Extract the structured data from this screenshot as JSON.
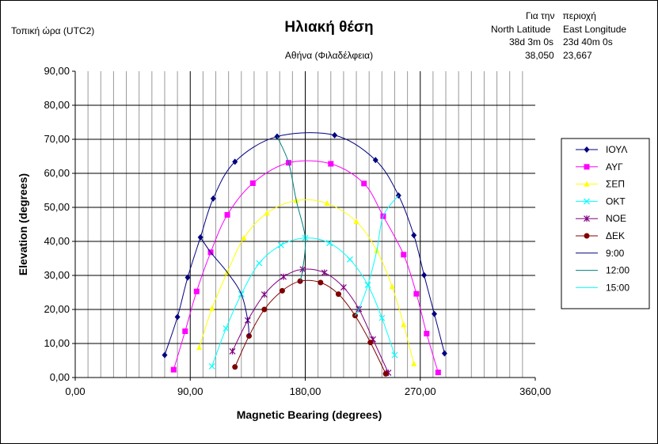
{
  "header": {
    "local_time": "Τοπική ώρα (UTC2)",
    "title": "Ηλιακή θέση",
    "subtitle": "Αθήνα (Φιλαδέλφεια)"
  },
  "location": {
    "region_label": "Για την   περιοχή",
    "lat_label": "North Latitude",
    "lon_label": "East Longitude",
    "lat_dms": "38d 3m 0s",
    "lon_dms": "23d 40m 0s",
    "lat_dec": "38,050",
    "lon_dec": "23,667"
  },
  "chart_data": {
    "type": "scatter",
    "xlabel": "Magnetic Bearing (degrees)",
    "ylabel": "Elevation (degrees)",
    "xlim": [
      0,
      360
    ],
    "ylim": [
      0,
      90
    ],
    "xticks": [
      "0,00",
      "90,00",
      "180,00",
      "270,00",
      "360,00"
    ],
    "yticks": [
      "0,00",
      "10,00",
      "20,00",
      "30,00",
      "40,00",
      "50,00",
      "60,00",
      "70,00",
      "80,00",
      "90,00"
    ],
    "grid": true,
    "legend": "right",
    "series": [
      {
        "name": "ΙΟΥΛ",
        "color": "#000080",
        "marker": "diamond",
        "points": [
          [
            70,
            6.6
          ],
          [
            80,
            17.8
          ],
          [
            88,
            29.4
          ],
          [
            98,
            41.2
          ],
          [
            108,
            52.6
          ],
          [
            125,
            63.4
          ],
          [
            158,
            70.8
          ],
          [
            203,
            71.2
          ],
          [
            235,
            63.9
          ],
          [
            253,
            53.5
          ],
          [
            265,
            41.8
          ],
          [
            273,
            30.1
          ],
          [
            281,
            18.7
          ],
          [
            289,
            7.1
          ]
        ]
      },
      {
        "name": "ΑΥΓ",
        "color": "#ff00ff",
        "marker": "square",
        "points": [
          [
            77,
            2.3
          ],
          [
            86,
            13.6
          ],
          [
            95,
            25.3
          ],
          [
            106,
            36.8
          ],
          [
            119,
            47.8
          ],
          [
            139,
            57.1
          ],
          [
            167,
            63.1
          ],
          [
            200,
            62.8
          ],
          [
            226,
            57.0
          ],
          [
            241,
            47.4
          ],
          [
            257,
            36.1
          ],
          [
            267,
            24.6
          ],
          [
            275,
            12.9
          ],
          [
            284,
            1.5
          ]
        ]
      },
      {
        "name": "ΣΕΠ",
        "color": "#ffff00",
        "marker": "triangle",
        "points": [
          [
            97,
            8.8
          ],
          [
            107,
            20.3
          ],
          [
            119,
            30.9
          ],
          [
            132,
            41.0
          ],
          [
            150,
            48.3
          ],
          [
            173,
            52.0
          ],
          [
            197,
            51.2
          ],
          [
            220,
            45.8
          ],
          [
            236,
            37.3
          ],
          [
            248,
            26.7
          ],
          [
            257,
            15.5
          ],
          [
            265,
            4.0
          ]
        ]
      },
      {
        "name": "ΟΚΤ",
        "color": "#00ffff",
        "marker": "x",
        "points": [
          [
            107,
            3.3
          ],
          [
            118,
            14.4
          ],
          [
            130,
            24.5
          ],
          [
            144,
            33.6
          ],
          [
            161,
            38.9
          ],
          [
            180,
            41.0
          ],
          [
            199,
            39.5
          ],
          [
            215,
            34.7
          ],
          [
            229,
            27.2
          ],
          [
            240,
            17.5
          ],
          [
            250,
            6.6
          ]
        ]
      },
      {
        "name": "ΝΟΕ",
        "color": "#800080",
        "marker": "star",
        "points": [
          [
            123,
            7.7
          ],
          [
            135,
            16.8
          ],
          [
            148,
            24.4
          ],
          [
            163,
            29.6
          ],
          [
            178,
            31.8
          ],
          [
            195,
            30.8
          ],
          [
            210,
            26.5
          ],
          [
            222,
            20.1
          ],
          [
            233,
            11.2
          ],
          [
            245,
            1.4
          ]
        ]
      },
      {
        "name": "ΔΕΚ",
        "color": "#800000",
        "marker": "circle",
        "points": [
          [
            125,
            3.1
          ],
          [
            136,
            12.2
          ],
          [
            148,
            20.0
          ],
          [
            162,
            25.5
          ],
          [
            176,
            28.3
          ],
          [
            192,
            27.9
          ],
          [
            206,
            24.5
          ],
          [
            219,
            18.2
          ],
          [
            231,
            10.3
          ],
          [
            243,
            1.1
          ]
        ]
      },
      {
        "name": "9:00",
        "color": "#000080",
        "marker": "none",
        "points": [
          [
            98,
            41.2
          ],
          [
            106,
            36.8
          ],
          [
            119,
            30.9
          ],
          [
            130,
            24.5
          ],
          [
            135,
            16.8
          ],
          [
            136,
            12.2
          ]
        ]
      },
      {
        "name": "12:00",
        "color": "#008080",
        "marker": "none",
        "points": [
          [
            158,
            70.8
          ],
          [
            167,
            63.1
          ],
          [
            173,
            52.0
          ],
          [
            180,
            41.0
          ],
          [
            178,
            31.8
          ],
          [
            176,
            28.3
          ]
        ]
      },
      {
        "name": "15:00",
        "color": "#00ffff",
        "marker": "none",
        "points": [
          [
            253,
            53.5
          ],
          [
            241,
            47.4
          ],
          [
            236,
            37.3
          ],
          [
            229,
            27.2
          ],
          [
            222,
            20.1
          ],
          [
            219,
            18.2
          ]
        ]
      }
    ]
  }
}
